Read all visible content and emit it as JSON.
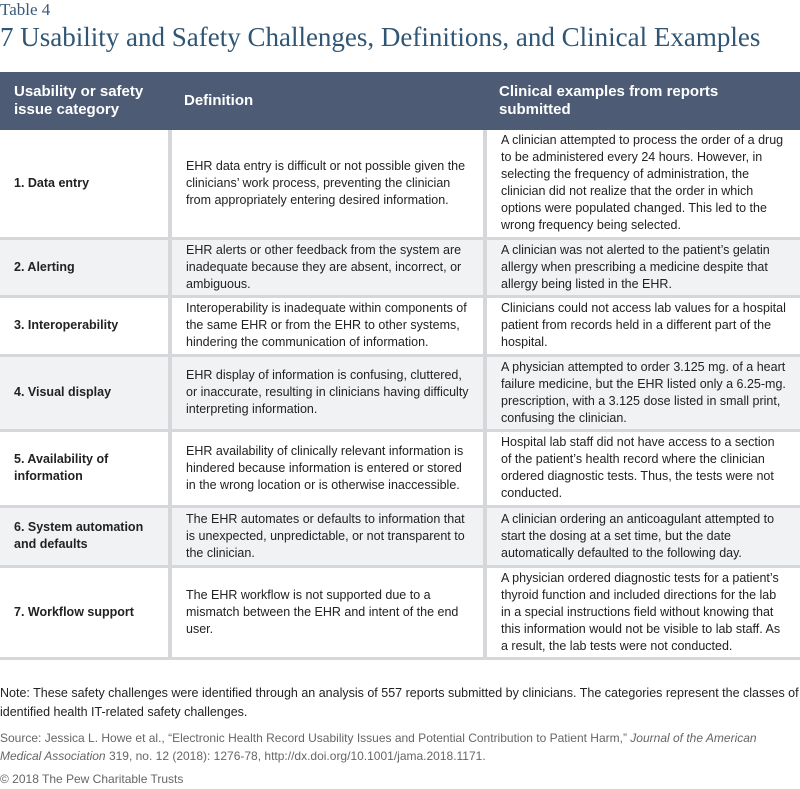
{
  "header": {
    "label": "Table 4",
    "title": "7 Usability and Safety Challenges, Definitions, and Clinical Examples"
  },
  "table": {
    "columns": [
      "Usability or safety issue category",
      "Definition",
      "Clinical examples from reports submitted"
    ],
    "rows": [
      [
        "1. Data entry",
        "EHR data entry is difficult or not possible given the clinicians’ work process, preventing the clinician from appropriately entering desired information.",
        "A clinician attempted to process the order of a drug to be administered every 24 hours. However, in selecting the frequency of administration, the clinician did not realize that the order in which options were populated changed. This led to the wrong frequency being selected."
      ],
      [
        "2. Alerting",
        "EHR alerts or other feedback from the system are inadequate because they are absent, incorrect, or ambiguous.",
        "A clinician was not alerted to the patient’s gelatin allergy when prescribing a medicine despite that allergy being listed in the EHR."
      ],
      [
        "3. Interoperability",
        "Interoperability is inadequate within components of the same EHR or from the EHR to other systems, hindering the communication of information.",
        "Clinicians could not access lab values for a hospital patient from records held in a different part of the hospital."
      ],
      [
        "4. Visual display",
        "EHR display of information is confusing, cluttered, or inaccurate, resulting in clinicians having difficulty interpreting information.",
        "A physician attempted to order 3.125 mg. of a heart failure medicine, but the EHR listed only a 6.25-mg. prescription, with a 3.125 dose listed in small print, confusing the clinician."
      ],
      [
        "5. Availability of information",
        "EHR availability of clinically relevant information is hindered because information is entered or stored in the wrong location or is otherwise inaccessible.",
        "Hospital lab staff did not have access to a section of the patient’s health record where the clinician ordered diagnostic tests. Thus, the tests were not conducted."
      ],
      [
        "6. System automation and defaults",
        "The EHR automates or defaults to information that is unexpected, unpredictable, or not transparent to the clinician.",
        "A clinician ordering an anticoagulant attempted to start the dosing at a set time, but the date automatically defaulted to the following day."
      ],
      [
        "7. Workflow support",
        "The EHR workflow is not supported due to a mismatch between the EHR and intent of the end user.",
        "A physician ordered diagnostic tests for a patient’s thyroid function and included directions for the lab in a special instructions field without knowing that this information would not be visible to lab staff. As a result, the lab tests were not conducted."
      ]
    ]
  },
  "note": "Note: These safety challenges were identified through an analysis of 557 reports submitted by clinicians. The categories represent the classes of identified health IT-related safety challenges.",
  "source": {
    "before": "Source: Jessica L. Howe et al., “Electronic Health Record Usability Issues and Potential Contribution to Patient Harm,” ",
    "journal": "Journal of the American Medical Association",
    "after": " 319, no. 12 (2018): 1276-78, http://dx.doi.org/10.1001/jama.2018.1171."
  },
  "copyright": "© 2018 The Pew Charitable Trusts"
}
